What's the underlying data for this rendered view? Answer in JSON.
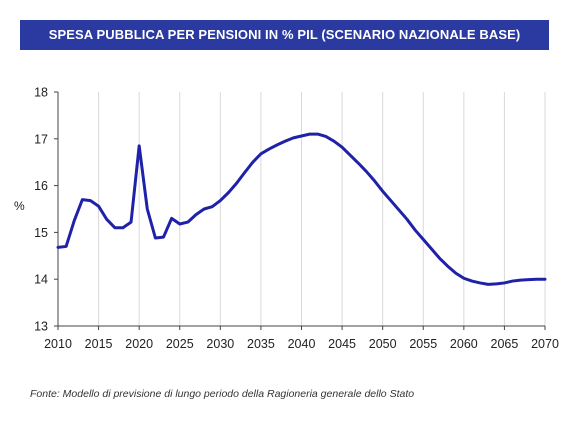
{
  "chart_data": {
    "type": "line",
    "title": "SPESA PUBBLICA PER PENSIONI IN % PIL (SCENARIO NAZIONALE BASE)",
    "ylabel": "%",
    "xlabel": "",
    "xlim": [
      2010,
      2070
    ],
    "ylim": [
      13,
      18
    ],
    "x_ticks": [
      "2010",
      "2015",
      "2020",
      "2025",
      "2030",
      "2035",
      "2040",
      "2045",
      "2050",
      "2055",
      "2060",
      "2065",
      "2070"
    ],
    "y_ticks": [
      "13",
      "14",
      "15",
      "16",
      "17",
      "18"
    ],
    "grid": "vertical",
    "line_color": "#1f22a8",
    "x": [
      2010,
      2011,
      2012,
      2013,
      2014,
      2015,
      2016,
      2017,
      2018,
      2019,
      2020,
      2021,
      2022,
      2023,
      2024,
      2025,
      2026,
      2027,
      2028,
      2029,
      2030,
      2031,
      2032,
      2033,
      2034,
      2035,
      2036,
      2037,
      2038,
      2039,
      2040,
      2041,
      2042,
      2043,
      2044,
      2045,
      2046,
      2047,
      2048,
      2049,
      2050,
      2051,
      2052,
      2053,
      2054,
      2055,
      2056,
      2057,
      2058,
      2059,
      2060,
      2061,
      2062,
      2063,
      2064,
      2065,
      2066,
      2067,
      2068,
      2069,
      2070
    ],
    "values": [
      14.68,
      14.7,
      15.25,
      15.7,
      15.68,
      15.56,
      15.28,
      15.1,
      15.1,
      15.22,
      16.85,
      15.5,
      14.88,
      14.9,
      15.3,
      15.18,
      15.22,
      15.38,
      15.5,
      15.55,
      15.68,
      15.85,
      16.05,
      16.28,
      16.5,
      16.68,
      16.78,
      16.87,
      16.95,
      17.02,
      17.06,
      17.1,
      17.1,
      17.05,
      16.95,
      16.82,
      16.65,
      16.48,
      16.3,
      16.1,
      15.88,
      15.68,
      15.48,
      15.28,
      15.05,
      14.85,
      14.65,
      14.45,
      14.28,
      14.13,
      14.02,
      13.96,
      13.92,
      13.89,
      13.9,
      13.92,
      13.96,
      13.98,
      13.99,
      14.0,
      14.0
    ]
  },
  "source": "Fonte: Modello di previsione di lungo periodo della Ragioneria generale dello Stato"
}
